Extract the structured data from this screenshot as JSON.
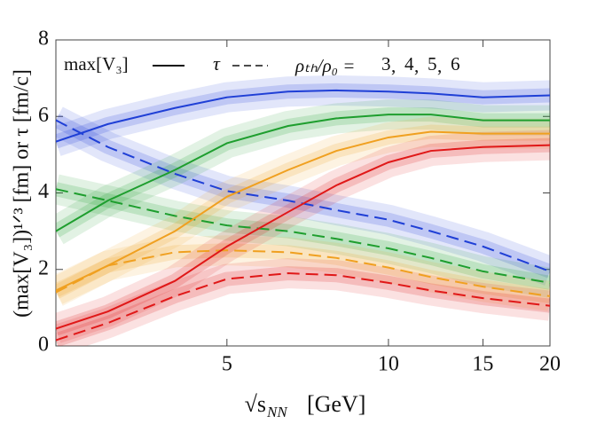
{
  "chart_data": {
    "type": "line",
    "x_label": "√s",
    "x_label_sub": "NN",
    "x_label_unit": "[GeV]",
    "y_label": "(max[V₃])¹ᐟ³ [fm] or τ [fm/c]",
    "legend": {
      "solid_label": "max[V₃]",
      "dashed_label": "τ",
      "ratio_label": "ρₜₕ/ρ₀ ="
    },
    "x": [
      2.4,
      3,
      4,
      5,
      6.5,
      8,
      10,
      12,
      15,
      20
    ],
    "series": [
      {
        "name": "3",
        "color": "#1f3fd6",
        "values": [
          5.34,
          5.8,
          6.22,
          6.5,
          6.65,
          6.68,
          6.65,
          6.6,
          6.5,
          6.55
        ],
        "tau": [
          5.9,
          5.2,
          4.5,
          4.05,
          3.8,
          3.55,
          3.3,
          3.0,
          2.6,
          1.95
        ]
      },
      {
        "name": "4",
        "color": "#1e9e2e",
        "values": [
          3.0,
          3.8,
          4.6,
          5.3,
          5.75,
          5.95,
          6.05,
          6.05,
          5.9,
          5.9
        ],
        "tau": [
          4.1,
          3.8,
          3.4,
          3.15,
          3.0,
          2.8,
          2.55,
          2.3,
          1.95,
          1.65
        ]
      },
      {
        "name": "5",
        "color": "#f0a020",
        "values": [
          1.45,
          2.1,
          3.0,
          3.9,
          4.6,
          5.1,
          5.45,
          5.6,
          5.55,
          5.55
        ],
        "tau": [
          1.4,
          2.1,
          2.45,
          2.5,
          2.45,
          2.3,
          2.05,
          1.8,
          1.55,
          1.3
        ]
      },
      {
        "name": "6",
        "color": "#e01818",
        "values": [
          0.45,
          0.9,
          1.7,
          2.6,
          3.5,
          4.2,
          4.8,
          5.1,
          5.2,
          5.25
        ],
        "tau": [
          0.15,
          0.6,
          1.3,
          1.75,
          1.9,
          1.85,
          1.65,
          1.45,
          1.25,
          1.05
        ]
      }
    ],
    "xscale": "log",
    "xlim": [
      2.4,
      20
    ],
    "xticks": [
      5,
      10,
      15,
      20
    ],
    "ylim": [
      0,
      8
    ],
    "yticks": [
      0,
      2,
      4,
      6,
      8
    ]
  }
}
